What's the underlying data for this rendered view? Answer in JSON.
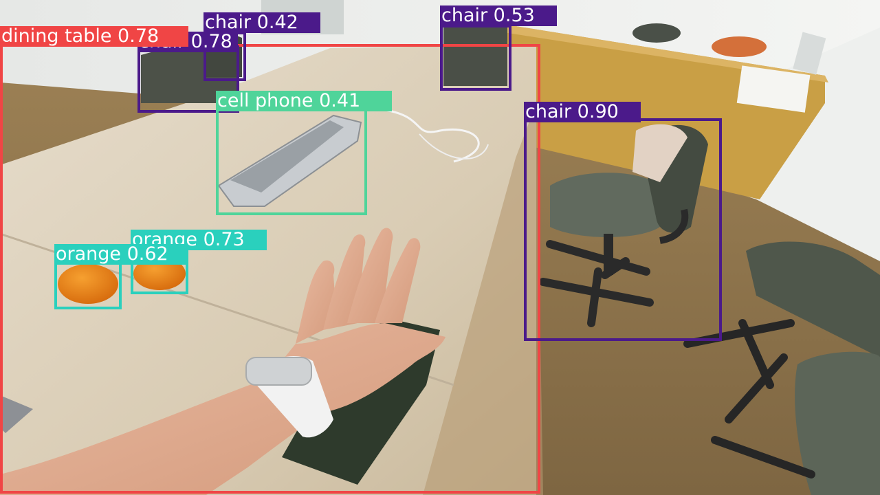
{
  "colors": {
    "chair": "#4b1a8a",
    "dining_table": "#f04545",
    "cell_phone": "#4fd49a",
    "orange": "#2ad0bd",
    "label_text": "#ffffff"
  },
  "detections": [
    {
      "id": "dining-table",
      "class_label": "dining table 0.78",
      "category": "dining table",
      "confidence": 0.78
    },
    {
      "id": "chair-1",
      "class_label": "chair 0.42",
      "category": "chair",
      "confidence": 0.42
    },
    {
      "id": "chair-2",
      "class_label": "chair 0.78",
      "category": "chair",
      "confidence": 0.78
    },
    {
      "id": "chair-3",
      "class_label": "chair 0.53",
      "category": "chair",
      "confidence": 0.53
    },
    {
      "id": "chair-4",
      "class_label": "chair 0.90",
      "category": "chair",
      "confidence": 0.9
    },
    {
      "id": "cell-phone",
      "class_label": "cell phone 0.41",
      "category": "cell phone",
      "confidence": 0.41
    },
    {
      "id": "orange-1",
      "class_label": "orange 0.73",
      "category": "orange",
      "confidence": 0.73
    },
    {
      "id": "orange-2",
      "class_label": "orange 0.62",
      "category": "orange",
      "confidence": 0.62
    }
  ]
}
